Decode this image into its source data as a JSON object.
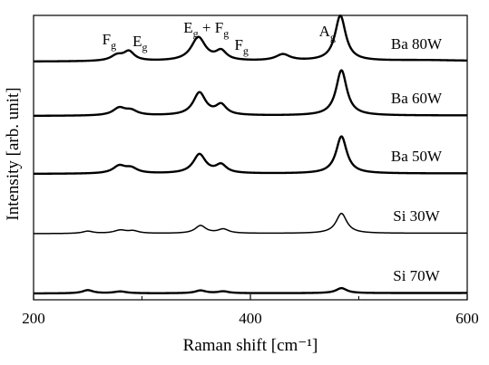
{
  "chart_data": {
    "type": "line",
    "xlabel": "Raman shift [cm⁻¹]",
    "ylabel": "Intensity [arb. unit]",
    "xlim": [
      200,
      600
    ],
    "x_ticks": [
      "200",
      "400",
      "600"
    ],
    "y_ticks": "none",
    "grid": false,
    "peak_labels": [
      {
        "main": "F",
        "sub": "g",
        "x": 270
      },
      {
        "main": "E",
        "sub": "g",
        "x": 298
      },
      {
        "main": "E",
        "sub": "g",
        "rest": " + F",
        "sub2": "g",
        "x": 345
      },
      {
        "main": "F",
        "sub": "g",
        "x": 392
      },
      {
        "main": "A",
        "sub": "g",
        "x": 470
      }
    ],
    "series": [
      {
        "name": "Ba 80W",
        "offset": 4,
        "lw": 2.4,
        "peaks": [
          [
            277,
            7,
            0.12
          ],
          [
            288,
            6,
            0.2
          ],
          [
            352,
            8,
            0.52
          ],
          [
            373,
            6,
            0.2
          ],
          [
            430,
            8,
            0.14
          ],
          [
            483,
            6,
            1.0
          ],
          [
            560,
            40,
            0.02
          ]
        ]
      },
      {
        "name": "Ba 60W",
        "offset": 3,
        "lw": 2.4,
        "peaks": [
          [
            279,
            7,
            0.16
          ],
          [
            290,
            7,
            0.1
          ],
          [
            353,
            7,
            0.5
          ],
          [
            373,
            6,
            0.22
          ],
          [
            484,
            6,
            1.0
          ]
        ]
      },
      {
        "name": "Ba 50W",
        "offset": 2,
        "lw": 2.4,
        "peaks": [
          [
            279,
            7,
            0.16
          ],
          [
            290,
            7,
            0.11
          ],
          [
            353,
            7,
            0.42
          ],
          [
            373,
            6,
            0.18
          ],
          [
            484,
            6,
            0.82
          ]
        ]
      },
      {
        "name": "Si 30W",
        "offset": 1,
        "lw": 1.5,
        "peaks": [
          [
            250,
            6,
            0.05
          ],
          [
            280,
            7,
            0.07
          ],
          [
            292,
            6,
            0.05
          ],
          [
            354,
            6,
            0.17
          ],
          [
            375,
            6,
            0.09
          ],
          [
            484,
            6,
            0.44
          ]
        ]
      },
      {
        "name": "Si 70W",
        "offset": 0,
        "lw": 2.4,
        "peaks": [
          [
            250,
            6,
            0.07
          ],
          [
            280,
            7,
            0.04
          ],
          [
            354,
            6,
            0.06
          ],
          [
            375,
            6,
            0.04
          ],
          [
            484,
            6,
            0.11
          ]
        ]
      }
    ]
  }
}
